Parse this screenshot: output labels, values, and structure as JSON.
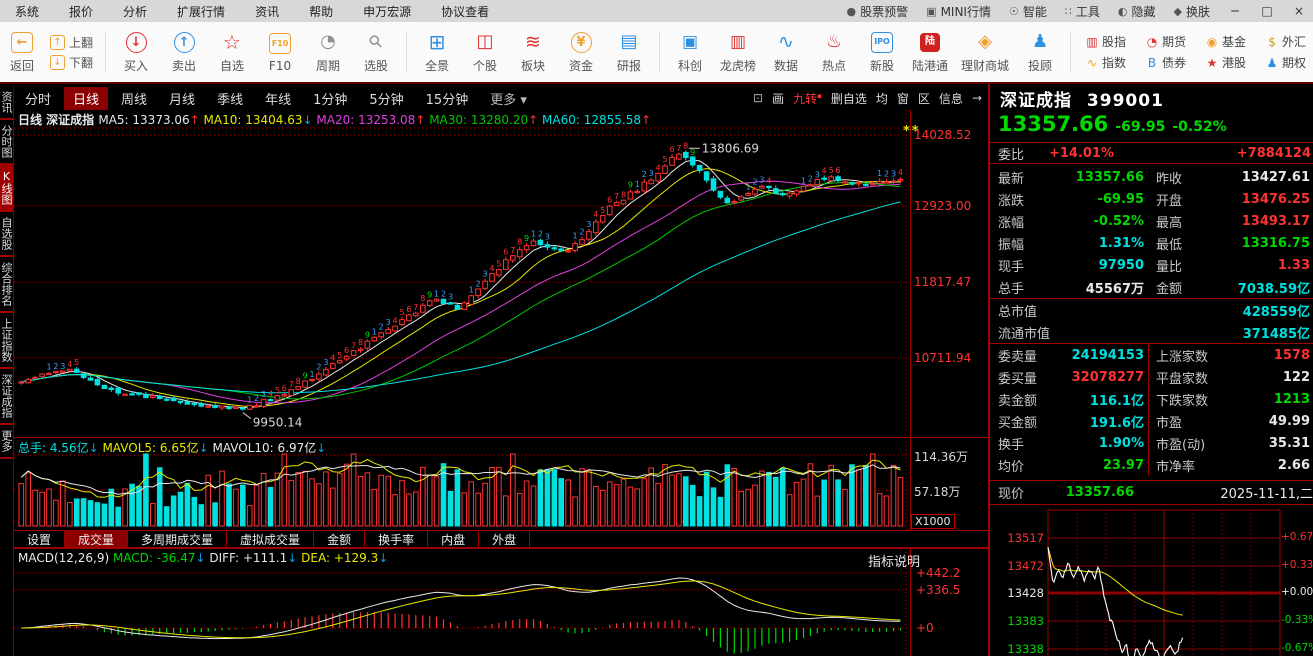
{
  "titlebar": {
    "menus": [
      "系统",
      "报价",
      "分析",
      "扩展行情",
      "资讯",
      "帮助",
      "申万宏源",
      "协议查看"
    ],
    "status_items": [
      {
        "label": "股票预警",
        "icon": "bell-icon",
        "glyph": "●"
      },
      {
        "label": "MINI行情",
        "icon": "mini-quote-icon",
        "glyph": "▣"
      },
      {
        "label": "智能",
        "icon": "robot-icon",
        "glyph": "☉"
      },
      {
        "label": "工具",
        "icon": "tools-icon",
        "glyph": "∷"
      },
      {
        "label": "隐藏",
        "icon": "hide-icon",
        "glyph": "◐"
      },
      {
        "label": "换肤",
        "icon": "skin-icon",
        "glyph": "◆"
      }
    ],
    "window_buttons": [
      {
        "name": "minimize",
        "glyph": "─"
      },
      {
        "name": "maximize",
        "glyph": "□"
      },
      {
        "name": "close",
        "glyph": "×"
      }
    ]
  },
  "toolbar": {
    "back_label": "返回",
    "pagers": [
      {
        "label": "上翻",
        "glyph": "↑"
      },
      {
        "label": "下翻",
        "glyph": "↓"
      }
    ],
    "groups": [
      [
        {
          "label": "买入",
          "icon": "buy-icon"
        },
        {
          "label": "卖出",
          "icon": "sell-icon"
        },
        {
          "label": "自选",
          "icon": "favorite-icon"
        },
        {
          "label": "F10",
          "icon": "f10-icon"
        },
        {
          "label": "周期",
          "icon": "period-icon"
        },
        {
          "label": "选股",
          "icon": "stock-pick-icon"
        }
      ],
      [
        {
          "label": "全景",
          "icon": "panorama-icon"
        },
        {
          "label": "个股",
          "icon": "stock-icon"
        },
        {
          "label": "板块",
          "icon": "sector-icon"
        },
        {
          "label": "资金",
          "icon": "funds-icon"
        },
        {
          "label": "研报",
          "icon": "report-icon"
        }
      ],
      [
        {
          "label": "科创",
          "icon": "star-market-icon"
        },
        {
          "label": "龙虎榜",
          "icon": "dragon-tiger-icon"
        },
        {
          "label": "数据",
          "icon": "data-icon"
        },
        {
          "label": "热点",
          "icon": "hot-icon"
        },
        {
          "label": "新股",
          "icon": "ipo-icon"
        },
        {
          "label": "陆港通",
          "icon": "hgt-icon"
        },
        {
          "label": "理财商城",
          "icon": "mall-icon"
        },
        {
          "label": "投顾",
          "icon": "advisor-icon"
        }
      ]
    ],
    "market_grid": [
      [
        {
          "label": "股指",
          "icon": "index-futures-icon"
        },
        {
          "label": "期货",
          "icon": "futures-icon"
        },
        {
          "label": "基金",
          "icon": "fund-icon"
        },
        {
          "label": "外汇",
          "icon": "forex-icon"
        }
      ],
      [
        {
          "label": "指数",
          "icon": "index-icon"
        },
        {
          "label": "债券",
          "icon": "bond-icon"
        },
        {
          "label": "港股",
          "icon": "hk-stock-icon"
        },
        {
          "label": "期权",
          "icon": "option-icon"
        }
      ]
    ],
    "expand_arrow": "→"
  },
  "period_bar": {
    "tabs": [
      "分时",
      "日线",
      "周线",
      "月线",
      "季线",
      "年线",
      "1分钟",
      "5分钟",
      "15分钟"
    ],
    "selected": "日线",
    "more_label": "更多 ▾",
    "tools": [
      "画",
      "九转",
      "删自选",
      "均",
      "窗",
      "区",
      "信息"
    ]
  },
  "sidebar": {
    "items": [
      "资讯",
      "分时图",
      "K线图",
      "自选股",
      "综合排名",
      "上证指数",
      "深证成指",
      "更多"
    ],
    "selected": "K线图"
  },
  "kline": {
    "header_period": "日线",
    "header_name": "深证成指",
    "mas": [
      {
        "label": "MA5:",
        "value": "13373.06",
        "dir": "up",
        "color": "#e8e8e8"
      },
      {
        "label": "MA10:",
        "value": "13404.63",
        "dir": "down",
        "color": "#e8e800"
      },
      {
        "label": "MA20:",
        "value": "13253.08",
        "dir": "up",
        "color": "#e040e0"
      },
      {
        "label": "MA30:",
        "value": "13280.20",
        "dir": "up",
        "color": "#00c800"
      },
      {
        "label": "MA60:",
        "value": "12855.58",
        "dir": "up",
        "color": "#00e0e0"
      }
    ],
    "y_labels": [
      "14028.52",
      "12923.00",
      "11817.47",
      "10711.94"
    ],
    "peak_label": "13806.69",
    "low_label": "9950.14",
    "stars": "**"
  },
  "volume": {
    "header": [
      {
        "label": "总手:",
        "value": "4.56亿",
        "color": "#00e0e0"
      },
      {
        "label": "MAVOL5:",
        "value": "6.65亿",
        "color": "#e8e800"
      },
      {
        "label": "MAVOL10:",
        "value": "6.97亿",
        "color": "#e8e8e8"
      }
    ],
    "y_labels": [
      "114.36万",
      "57.18万"
    ],
    "scale_label": "X1000"
  },
  "indicator_tabs": {
    "items": [
      "设置",
      "成交量",
      "多周期成交量",
      "虚拟成交量",
      "金额",
      "换手率",
      "内盘",
      "外盘"
    ],
    "selected": "成交量"
  },
  "macd": {
    "title": "MACD(12,26,9)",
    "items": [
      {
        "label": "MACD:",
        "value": "-36.47",
        "color": "#00d800"
      },
      {
        "label": "DIFF:",
        "value": "+111.1",
        "color": "#e8e8e8"
      },
      {
        "label": "DEA:",
        "value": "+129.3",
        "color": "#e8e800"
      }
    ],
    "y_labels": [
      "+442.2",
      "+336.5",
      "+0"
    ],
    "note": "指标说明"
  },
  "quote": {
    "name": "深证成指",
    "code": "399001",
    "price": "13357.66",
    "change": "-69.95",
    "pct": "-0.52%",
    "weibi": {
      "label": "委比",
      "value": "+14.01%",
      "extra": "+7884124"
    },
    "rows_a": [
      {
        "l1": "最新",
        "v1": "13357.66",
        "c1": "green",
        "l2": "昨收",
        "v2": "13427.61",
        "c2": "white"
      },
      {
        "l1": "涨跌",
        "v1": "-69.95",
        "c1": "green",
        "l2": "开盘",
        "v2": "13476.25",
        "c2": "red"
      },
      {
        "l1": "涨幅",
        "v1": "-0.52%",
        "c1": "green",
        "l2": "最高",
        "v2": "13493.17",
        "c2": "red"
      },
      {
        "l1": "振幅",
        "v1": "1.31%",
        "c1": "cyan",
        "l2": "最低",
        "v2": "13316.75",
        "c2": "green"
      },
      {
        "l1": "现手",
        "v1": "97950",
        "c1": "cyan",
        "l2": "量比",
        "v2": "1.33",
        "c2": "red"
      },
      {
        "l1": "总手",
        "v1": "45567万",
        "c1": "white",
        "l2": "金额",
        "v2": "7038.59亿",
        "c2": "cyan"
      }
    ],
    "rows_b": [
      {
        "l": "总市值",
        "v": "428559亿",
        "c": "cyan"
      },
      {
        "l": "流通市值",
        "v": "371485亿",
        "c": "cyan"
      }
    ],
    "rows_c": [
      {
        "l1": "委卖量",
        "v1": "24194153",
        "c1": "cyan",
        "l2": "上涨家数",
        "v2": "1578",
        "c2": "red"
      },
      {
        "l1": "委买量",
        "v1": "32078277",
        "c1": "red",
        "l2": "平盘家数",
        "v2": "122",
        "c2": "white"
      },
      {
        "l1": "卖金额",
        "v1": "116.1亿",
        "c1": "cyan",
        "l2": "下跌家数",
        "v2": "1213",
        "c2": "green"
      },
      {
        "l1": "买金额",
        "v1": "191.6亿",
        "c1": "cyan",
        "l2": "市盈",
        "v2": "49.99",
        "c2": "white"
      },
      {
        "l1": "换手",
        "v1": "1.90%",
        "c1": "cyan",
        "l2": "市盈(动)",
        "v2": "35.31",
        "c2": "white"
      },
      {
        "l1": "均价",
        "v1": "23.97",
        "c1": "green",
        "l2": "市净率",
        "v2": "2.66",
        "c2": "white"
      }
    ],
    "footer": {
      "label": "现价",
      "value": "13357.66",
      "date": "2025-11-11,二"
    }
  },
  "mini_chart": {
    "left_labels": [
      {
        "t": "13517",
        "c": "red"
      },
      {
        "t": "13472",
        "c": "red"
      },
      {
        "t": "13428",
        "c": "white"
      },
      {
        "t": "13383",
        "c": "green"
      },
      {
        "t": "13338",
        "c": "green"
      }
    ],
    "right_labels": [
      {
        "t": "+0.67%",
        "c": "red"
      },
      {
        "t": "+0.33%",
        "c": "red"
      },
      {
        "t": "+0.00%",
        "c": "white"
      },
      {
        "t": "-0.33%",
        "c": "green"
      },
      {
        "t": "-0.67%",
        "c": "green"
      }
    ]
  },
  "chart_data": {
    "type": "candlestick",
    "title": "深证成指 日线",
    "y_axis_ticks": [
      14028.52,
      12923.0,
      11817.47,
      10711.94
    ],
    "annotations": {
      "peak": 13806.69,
      "low": 9950.14,
      "last_close": 13357.66
    },
    "price_anchors": [
      [
        0,
        10350
      ],
      [
        0.05,
        10560
      ],
      [
        0.1,
        10240
      ],
      [
        0.18,
        10050
      ],
      [
        0.25,
        9950
      ],
      [
        0.3,
        10180
      ],
      [
        0.36,
        10650
      ],
      [
        0.42,
        11150
      ],
      [
        0.47,
        11600
      ],
      [
        0.5,
        11450
      ],
      [
        0.55,
        12150
      ],
      [
        0.58,
        12450
      ],
      [
        0.62,
        12250
      ],
      [
        0.67,
        12950
      ],
      [
        0.72,
        13400
      ],
      [
        0.75,
        13806
      ],
      [
        0.78,
        13350
      ],
      [
        0.8,
        12980
      ],
      [
        0.84,
        13300
      ],
      [
        0.87,
        13120
      ],
      [
        0.91,
        13420
      ],
      [
        0.95,
        13280
      ],
      [
        1,
        13357
      ]
    ],
    "mini_anchors": [
      [
        0,
        13502
      ],
      [
        0.04,
        13438
      ],
      [
        0.07,
        13468
      ],
      [
        0.11,
        13452
      ],
      [
        0.15,
        13477
      ],
      [
        0.19,
        13455
      ],
      [
        0.23,
        13472
      ],
      [
        0.27,
        13448
      ],
      [
        0.31,
        13465
      ],
      [
        0.35,
        13455
      ],
      [
        0.38,
        13470
      ],
      [
        0.41,
        13430
      ],
      [
        0.45,
        13392
      ],
      [
        0.5,
        13368
      ],
      [
        0.55,
        13332
      ],
      [
        0.58,
        13347
      ],
      [
        0.62,
        13308
      ],
      [
        0.66,
        13340
      ],
      [
        0.7,
        13322
      ],
      [
        0.75,
        13352
      ],
      [
        0.8,
        13338
      ],
      [
        0.85,
        13318
      ],
      [
        0.9,
        13342
      ],
      [
        0.95,
        13330
      ],
      [
        1,
        13357
      ]
    ],
    "mini_x_extent": 0.58,
    "volume_axis": [
      1143600,
      571800
    ],
    "macd_axis": [
      442.2,
      336.5,
      0
    ]
  }
}
